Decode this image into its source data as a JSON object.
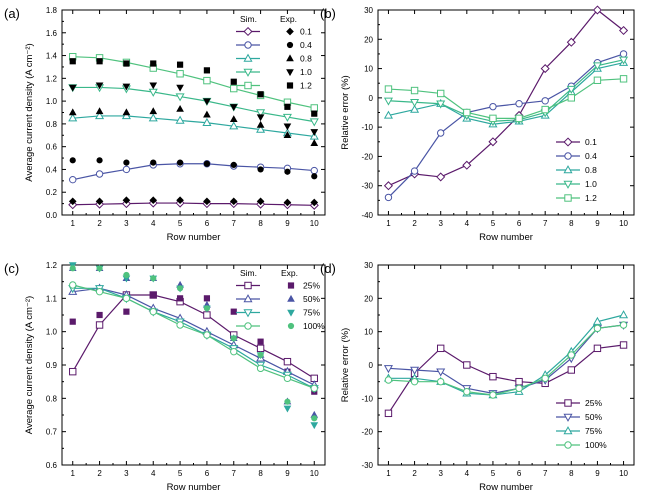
{
  "chart_data": [
    {
      "panel": "(a)",
      "type": "line",
      "xlabel": "Row number",
      "ylabel": "Average current density (A cm⁻²)",
      "xlim": [
        0.6,
        10.4
      ],
      "ylim": [
        0.0,
        1.8
      ],
      "xticks": [
        1,
        2,
        3,
        4,
        5,
        6,
        7,
        8,
        9,
        10
      ],
      "yticks": [
        0.0,
        0.2,
        0.4,
        0.6,
        0.8,
        1.0,
        1.2,
        1.4,
        1.6,
        1.8
      ],
      "ytick_decimals": 1,
      "legend": {
        "position": "top-right",
        "headers": [
          "Sim.",
          "Exp."
        ]
      },
      "series": [
        {
          "name": "0.1",
          "color": "#5b1a6b",
          "marker": "diamond",
          "exp_marker": "diamond",
          "sim": [
            0.09,
            0.095,
            0.1,
            0.105,
            0.105,
            0.1,
            0.1,
            0.095,
            0.09,
            0.085
          ],
          "exp": [
            0.12,
            0.12,
            0.13,
            0.13,
            0.13,
            0.12,
            0.12,
            0.12,
            0.11,
            0.11
          ]
        },
        {
          "name": "0.4",
          "color": "#4a55a5",
          "marker": "circle",
          "exp_marker": "circle",
          "sim": [
            0.31,
            0.36,
            0.4,
            0.44,
            0.45,
            0.45,
            0.43,
            0.42,
            0.41,
            0.39
          ],
          "exp": [
            0.48,
            0.48,
            0.46,
            0.46,
            0.46,
            0.45,
            0.44,
            0.4,
            0.38,
            0.34
          ]
        },
        {
          "name": "0.8",
          "color": "#2ea89f",
          "marker": "triangle-up",
          "exp_marker": "triangle-up",
          "sim": [
            0.85,
            0.87,
            0.87,
            0.85,
            0.83,
            0.81,
            0.78,
            0.75,
            0.72,
            0.69
          ],
          "exp": [
            0.9,
            0.91,
            0.9,
            0.91,
            0.93,
            0.88,
            0.84,
            0.79,
            0.7,
            0.63
          ]
        },
        {
          "name": "1.0",
          "color": "#3ab88a",
          "marker": "triangle-down",
          "exp_marker": "triangle-down",
          "sim": [
            1.12,
            1.12,
            1.11,
            1.08,
            1.04,
            1.0,
            0.95,
            0.9,
            0.86,
            0.82
          ],
          "exp": [
            1.12,
            1.14,
            1.13,
            1.14,
            1.12,
            1.0,
            0.95,
            0.86,
            0.78,
            0.73
          ]
        },
        {
          "name": "1.2",
          "color": "#4fc27e",
          "marker": "square",
          "exp_marker": "square",
          "sim": [
            1.39,
            1.38,
            1.34,
            1.29,
            1.24,
            1.18,
            1.11,
            1.05,
            0.99,
            0.94
          ],
          "exp": [
            1.35,
            1.35,
            1.33,
            1.33,
            1.32,
            1.27,
            1.17,
            1.06,
            0.95,
            0.89
          ]
        }
      ]
    },
    {
      "panel": "(b)",
      "type": "line",
      "xlabel": "Row number",
      "ylabel": "Relative error (%)",
      "xlim": [
        0.6,
        10.4
      ],
      "ylim": [
        -40,
        30
      ],
      "xticks": [
        1,
        2,
        3,
        4,
        5,
        6,
        7,
        8,
        9,
        10
      ],
      "yticks": [
        -40,
        -30,
        -20,
        -10,
        0,
        10,
        20,
        30
      ],
      "ytick_decimals": 0,
      "legend": {
        "position": "lower-right"
      },
      "series": [
        {
          "name": "0.1",
          "color": "#5b1a6b",
          "marker": "diamond",
          "values": [
            -30,
            -26,
            -27,
            -23,
            -15,
            -6,
            10,
            19,
            30,
            23
          ]
        },
        {
          "name": "0.4",
          "color": "#4a55a5",
          "marker": "circle",
          "values": [
            -34,
            -25,
            -12,
            -5,
            -3,
            -2,
            -1,
            4,
            12,
            15
          ]
        },
        {
          "name": "0.8",
          "color": "#2ea89f",
          "marker": "triangle-up",
          "values": [
            -6,
            -4,
            -2,
            -7,
            -9,
            -8,
            -6,
            2,
            10,
            12
          ]
        },
        {
          "name": "1.0",
          "color": "#3ab88a",
          "marker": "triangle-down",
          "values": [
            -1,
            -1.5,
            -2,
            -6,
            -8,
            -7.5,
            -5,
            3,
            11,
            13
          ]
        },
        {
          "name": "1.2",
          "color": "#4fc27e",
          "marker": "square",
          "values": [
            3,
            2.5,
            1.5,
            -5,
            -7,
            -7,
            -4,
            0,
            6,
            6.5
          ]
        }
      ]
    },
    {
      "panel": "(c)",
      "type": "line",
      "xlabel": "Row number",
      "ylabel": "Average current density (A cm⁻²)",
      "xlim": [
        0.6,
        10.4
      ],
      "ylim": [
        0.6,
        1.2
      ],
      "xticks": [
        1,
        2,
        3,
        4,
        5,
        6,
        7,
        8,
        9,
        10
      ],
      "yticks": [
        0.6,
        0.7,
        0.8,
        0.9,
        1.0,
        1.1,
        1.2
      ],
      "ytick_decimals": 1,
      "legend": {
        "position": "top-right",
        "headers": [
          "Sim.",
          "Exp."
        ]
      },
      "series": [
        {
          "name": "25%",
          "color": "#5b1a6b",
          "marker": "square",
          "exp_marker": "square",
          "sim": [
            0.88,
            1.02,
            1.11,
            1.11,
            1.09,
            1.05,
            0.99,
            0.95,
            0.91,
            0.86
          ],
          "exp": [
            1.03,
            1.05,
            1.06,
            1.11,
            1.1,
            1.1,
            1.06,
            0.97,
            0.88,
            0.82
          ]
        },
        {
          "name": "50%",
          "color": "#4a55a5",
          "marker": "triangle-up",
          "exp_marker": "triangle-up",
          "sim": [
            1.12,
            1.13,
            1.11,
            1.07,
            1.04,
            1.0,
            0.96,
            0.92,
            0.88,
            0.84
          ],
          "exp": [
            1.19,
            1.19,
            1.16,
            1.16,
            1.14,
            1.08,
            0.98,
            0.93,
            0.79,
            0.75
          ]
        },
        {
          "name": "75%",
          "color": "#2ea89f",
          "marker": "triangle-down",
          "exp_marker": "triangle-down",
          "sim": [
            1.13,
            1.13,
            1.1,
            1.06,
            1.03,
            0.99,
            0.95,
            0.9,
            0.87,
            0.83
          ],
          "exp": [
            1.2,
            1.19,
            1.16,
            1.16,
            1.13,
            1.07,
            0.98,
            0.93,
            0.77,
            0.72
          ]
        },
        {
          "name": "100%",
          "color": "#4fc27e",
          "marker": "circle",
          "exp_marker": "circle",
          "sim": [
            1.14,
            1.12,
            1.1,
            1.06,
            1.02,
            0.99,
            0.94,
            0.89,
            0.86,
            0.83
          ],
          "exp": [
            1.19,
            1.19,
            1.17,
            1.16,
            1.13,
            1.07,
            0.98,
            0.93,
            0.79,
            0.74
          ]
        }
      ]
    },
    {
      "panel": "(d)",
      "type": "line",
      "xlabel": "Row number",
      "ylabel": "Relative error (%)",
      "xlim": [
        0.6,
        10.4
      ],
      "ylim": [
        -30,
        30
      ],
      "xticks": [
        1,
        2,
        3,
        4,
        5,
        6,
        7,
        8,
        9,
        10
      ],
      "yticks": [
        -30,
        -20,
        -10,
        0,
        10,
        20,
        30
      ],
      "ytick_decimals": 0,
      "legend": {
        "position": "lower-right"
      },
      "series": [
        {
          "name": "25%",
          "color": "#5b1a6b",
          "marker": "square",
          "values": [
            -14.5,
            -2.5,
            5,
            0,
            -3.5,
            -5,
            -5.5,
            -1.5,
            5,
            6
          ]
        },
        {
          "name": "50%",
          "color": "#4a55a5",
          "marker": "triangle-down",
          "values": [
            -1,
            -1.5,
            -2,
            -7,
            -8.5,
            -7,
            -4.5,
            2,
            11,
            12
          ]
        },
        {
          "name": "75%",
          "color": "#2ea89f",
          "marker": "triangle-up",
          "values": [
            -4,
            -4,
            -5,
            -8.5,
            -9,
            -8,
            -3,
            4,
            13,
            15
          ]
        },
        {
          "name": "100%",
          "color": "#4fc27e",
          "marker": "circle",
          "values": [
            -4.5,
            -5,
            -5,
            -8,
            -9,
            -7,
            -4,
            3,
            11,
            12
          ]
        }
      ]
    }
  ]
}
